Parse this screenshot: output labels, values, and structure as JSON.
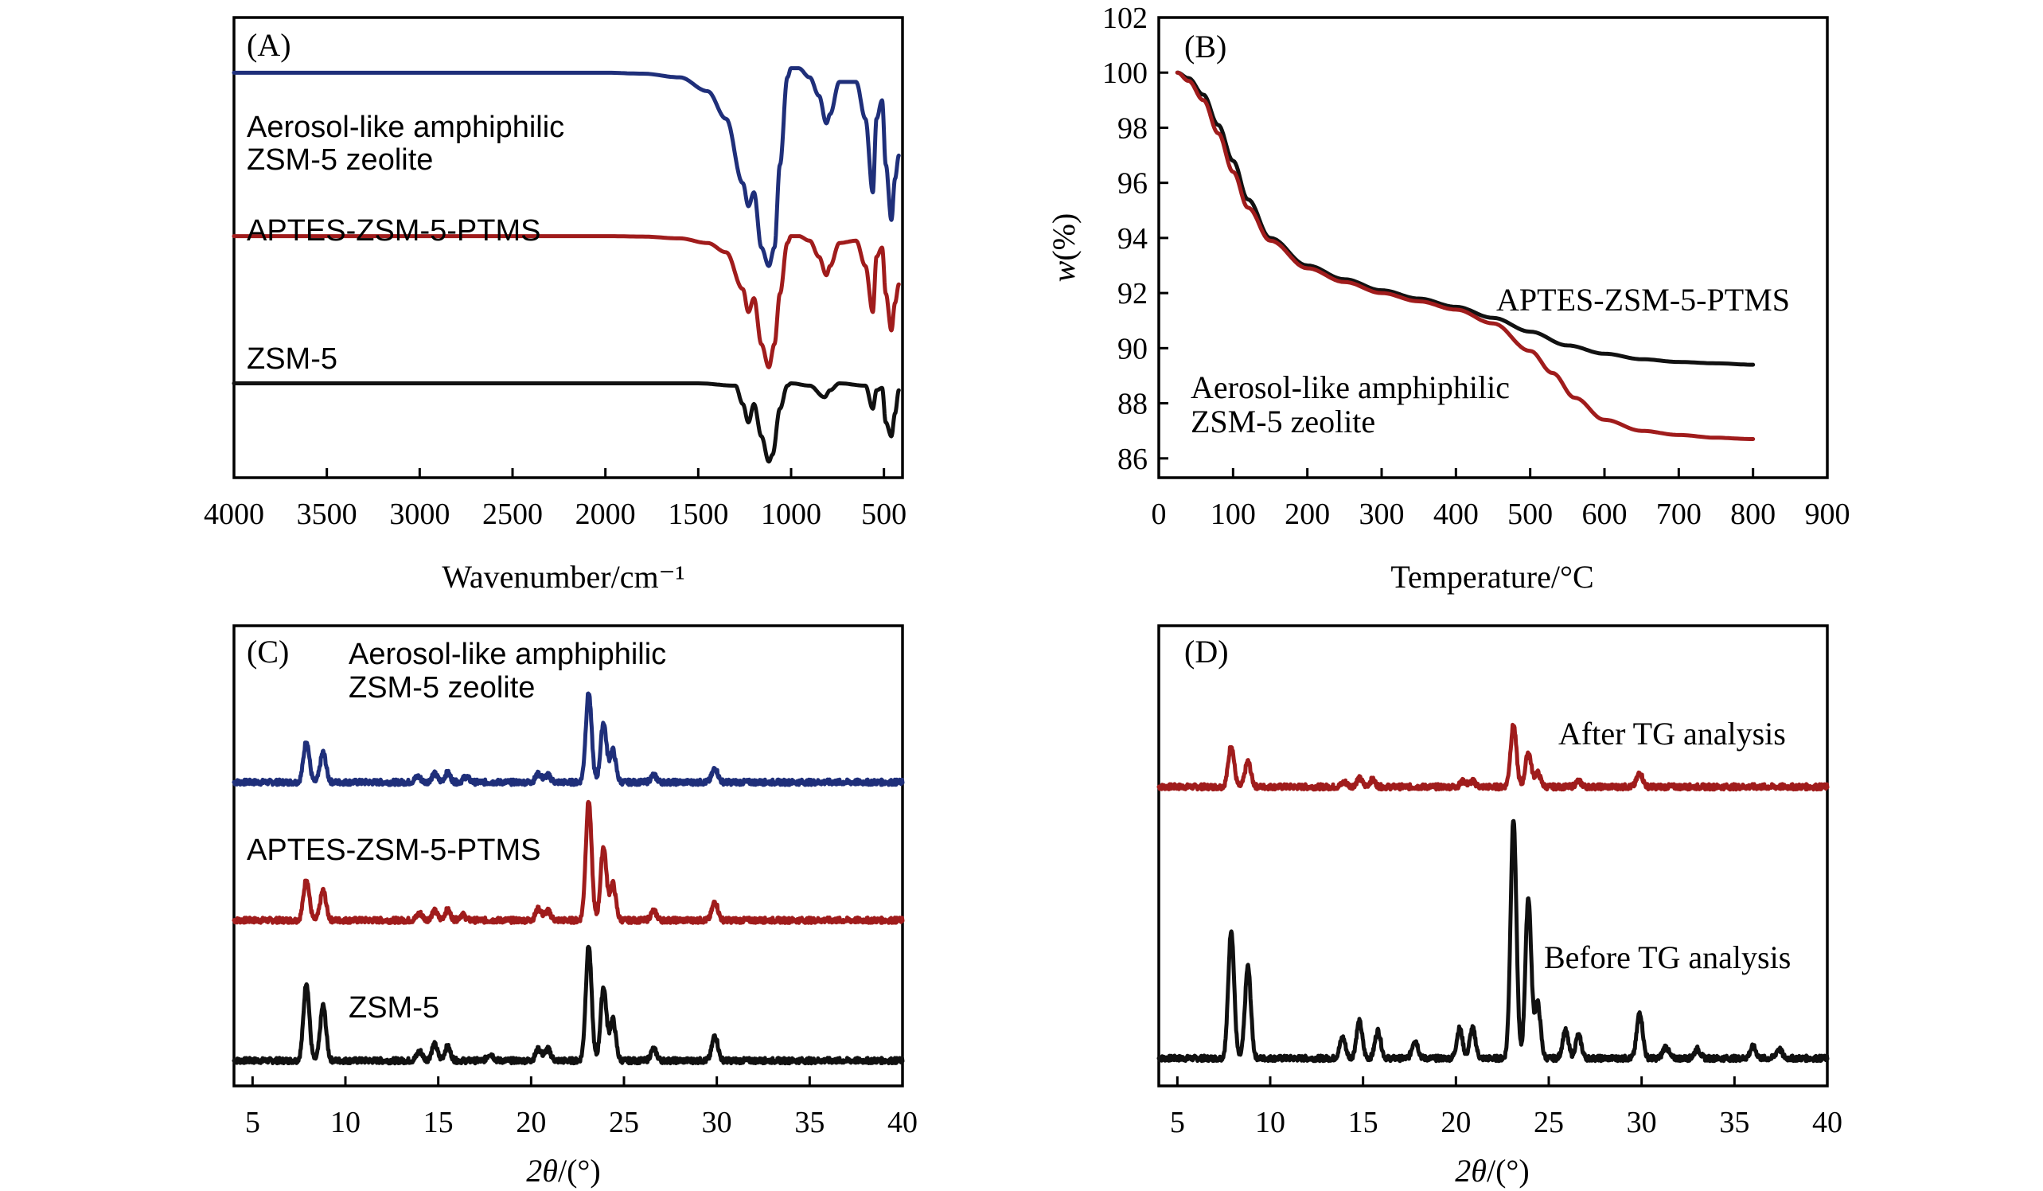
{
  "figure": {
    "colors": {
      "blue": "#1f2f7a",
      "red": "#a01c1c",
      "black": "#111111"
    }
  },
  "chart_data": [
    {
      "id": "A",
      "type": "line",
      "panel_label": "(A)",
      "title": "",
      "xlabel": "Wavenumber/cm⁻¹",
      "ylabel": "",
      "xlim": [
        4000,
        400
      ],
      "x_reversed": true,
      "xticks": [
        4000,
        3500,
        3000,
        2500,
        2000,
        1500,
        1000,
        500
      ],
      "xtick_labels": [
        "4000",
        "3500",
        "3000",
        "2500",
        "2000",
        "1500",
        "1000",
        "500"
      ],
      "y_units": "arbitrary (offset transmittance)",
      "ylim": [
        0,
        10
      ],
      "series": [
        {
          "name": "Aerosol-like amphiphilic ZSM-5 zeolite",
          "label_lines": [
            "Aerosol-like amphiphilic",
            "ZSM-5 zeolite"
          ],
          "color": "#1f2f7a",
          "x": [
            4000,
            3000,
            2000,
            1800,
            1600,
            1450,
            1350,
            1260,
            1230,
            1200,
            1160,
            1120,
            1090,
            1060,
            1020,
            1000,
            960,
            900,
            850,
            810,
            790,
            740,
            650,
            600,
            560,
            540,
            510,
            490,
            460,
            440,
            420
          ],
          "y": [
            8.8,
            8.8,
            8.8,
            8.78,
            8.7,
            8.4,
            7.8,
            6.4,
            5.9,
            6.2,
            5.0,
            4.6,
            5.0,
            6.8,
            8.7,
            8.9,
            8.9,
            8.7,
            8.3,
            7.7,
            7.9,
            8.6,
            8.6,
            7.8,
            6.2,
            7.8,
            8.2,
            6.8,
            5.6,
            6.5,
            7.0
          ]
        },
        {
          "name": "APTES-ZSM-5-PTMS",
          "label_lines": [
            "APTES-ZSM-5-PTMS"
          ],
          "color": "#a01c1c",
          "x": [
            4000,
            3000,
            2000,
            1800,
            1600,
            1450,
            1350,
            1260,
            1230,
            1200,
            1160,
            1120,
            1090,
            1060,
            1020,
            1000,
            960,
            900,
            850,
            810,
            790,
            740,
            650,
            600,
            560,
            540,
            510,
            490,
            460,
            440,
            420
          ],
          "y": [
            5.25,
            5.25,
            5.25,
            5.24,
            5.2,
            5.1,
            4.9,
            4.1,
            3.6,
            3.9,
            2.9,
            2.4,
            2.9,
            4.0,
            5.1,
            5.25,
            5.25,
            5.15,
            4.8,
            4.4,
            4.6,
            5.1,
            5.15,
            4.6,
            3.6,
            4.8,
            5.0,
            4.0,
            3.2,
            3.8,
            4.2
          ]
        },
        {
          "name": "ZSM-5",
          "label_lines": [
            "ZSM-5"
          ],
          "color": "#111111",
          "x": [
            4000,
            3000,
            2000,
            1500,
            1300,
            1260,
            1230,
            1200,
            1160,
            1120,
            1100,
            1060,
            1020,
            1000,
            900,
            820,
            790,
            740,
            600,
            560,
            540,
            510,
            490,
            460,
            440,
            420
          ],
          "y": [
            2.05,
            2.05,
            2.05,
            2.05,
            2.0,
            1.6,
            1.2,
            1.6,
            0.9,
            0.35,
            0.5,
            1.5,
            2.0,
            2.05,
            2.0,
            1.75,
            1.9,
            2.05,
            2.0,
            1.5,
            1.9,
            1.95,
            1.2,
            0.9,
            1.4,
            1.9
          ]
        }
      ]
    },
    {
      "id": "B",
      "type": "line",
      "panel_label": "(B)",
      "title": "",
      "xlabel": "Temperature/°C",
      "ylabel_italic": "w",
      "ylabel_rest": "(%)",
      "xlim": [
        0,
        900
      ],
      "ylim": [
        85.3,
        102
      ],
      "xticks": [
        0,
        100,
        200,
        300,
        400,
        500,
        600,
        700,
        800,
        900
      ],
      "xtick_labels": [
        "0",
        "100",
        "200",
        "300",
        "400",
        "500",
        "600",
        "700",
        "800",
        "900"
      ],
      "yticks": [
        86,
        88,
        90,
        92,
        94,
        96,
        98,
        100,
        102
      ],
      "ytick_labels": [
        "86",
        "88",
        "90",
        "92",
        "94",
        "96",
        "98",
        "100",
        "102"
      ],
      "series": [
        {
          "name": "APTES-ZSM-5-PTMS",
          "label_lines": [
            "APTES-ZSM-5-PTMS"
          ],
          "color": "#111111",
          "x": [
            25,
            40,
            60,
            80,
            100,
            120,
            150,
            200,
            250,
            300,
            350,
            400,
            450,
            500,
            550,
            600,
            650,
            700,
            750,
            800
          ],
          "y": [
            100,
            99.8,
            99.2,
            98.1,
            96.8,
            95.4,
            94.0,
            93.0,
            92.5,
            92.1,
            91.8,
            91.5,
            91.1,
            90.6,
            90.1,
            89.8,
            89.6,
            89.5,
            89.45,
            89.4
          ]
        },
        {
          "name": "Aerosol-like amphiphilic ZSM-5 zeolite",
          "label_lines": [
            "Aerosol-like amphiphilic",
            "ZSM-5 zeolite"
          ],
          "color": "#a01c1c",
          "x": [
            25,
            40,
            60,
            80,
            100,
            120,
            150,
            200,
            250,
            300,
            350,
            400,
            450,
            500,
            530,
            560,
            600,
            650,
            700,
            750,
            800
          ],
          "y": [
            100,
            99.7,
            99.0,
            97.8,
            96.4,
            95.1,
            93.9,
            92.9,
            92.4,
            92.0,
            91.7,
            91.4,
            90.9,
            89.9,
            89.1,
            88.2,
            87.4,
            87.0,
            86.85,
            86.75,
            86.7
          ]
        }
      ]
    },
    {
      "id": "C",
      "type": "line",
      "panel_label": "(C)",
      "title": "",
      "xlabel_italic": "2θ",
      "xlabel_rest": "/(°)",
      "xlim": [
        4,
        40
      ],
      "ylim": [
        0,
        10
      ],
      "xticks": [
        5,
        10,
        15,
        20,
        25,
        30,
        35,
        40
      ],
      "xtick_labels": [
        "5",
        "10",
        "15",
        "20",
        "25",
        "30",
        "35",
        "40"
      ],
      "series": [
        {
          "name": "Aerosol-like amphiphilic ZSM-5 zeolite",
          "label_lines": [
            "Aerosol-like amphiphilic",
            "ZSM-5 zeolite"
          ],
          "color": "#1f2f7a",
          "baseline": 6.6,
          "peaks": [
            [
              7.9,
              0.9
            ],
            [
              8.8,
              0.65
            ],
            [
              13.9,
              0.12
            ],
            [
              14.8,
              0.18
            ],
            [
              15.5,
              0.2
            ],
            [
              16.5,
              0.12
            ],
            [
              20.4,
              0.18
            ],
            [
              20.9,
              0.15
            ],
            [
              23.1,
              1.95
            ],
            [
              23.9,
              1.3
            ],
            [
              24.4,
              0.7
            ],
            [
              26.6,
              0.15
            ],
            [
              29.9,
              0.3
            ],
            [
              45,
              0
            ]
          ]
        },
        {
          "name": "APTES-ZSM-5-PTMS",
          "label_lines": [
            "APTES-ZSM-5-PTMS"
          ],
          "color": "#a01c1c",
          "baseline": 3.6,
          "peaks": [
            [
              7.9,
              0.9
            ],
            [
              8.8,
              0.65
            ],
            [
              14.0,
              0.15
            ],
            [
              14.8,
              0.2
            ],
            [
              15.5,
              0.22
            ],
            [
              16.3,
              0.12
            ],
            [
              20.4,
              0.25
            ],
            [
              20.9,
              0.2
            ],
            [
              23.1,
              2.6
            ],
            [
              23.9,
              1.6
            ],
            [
              24.4,
              0.8
            ],
            [
              26.6,
              0.2
            ],
            [
              29.9,
              0.4
            ],
            [
              45,
              0
            ]
          ]
        },
        {
          "name": "ZSM-5",
          "label_lines": [
            "ZSM-5"
          ],
          "color": "#111111",
          "baseline": 0.55,
          "peaks": [
            [
              7.9,
              1.7
            ],
            [
              8.8,
              1.2
            ],
            [
              14.0,
              0.2
            ],
            [
              14.8,
              0.35
            ],
            [
              15.5,
              0.3
            ],
            [
              17.8,
              0.15
            ],
            [
              20.4,
              0.25
            ],
            [
              20.9,
              0.25
            ],
            [
              23.1,
              2.5
            ],
            [
              23.9,
              1.6
            ],
            [
              24.4,
              0.9
            ],
            [
              26.6,
              0.25
            ],
            [
              29.9,
              0.55
            ],
            [
              45,
              0
            ]
          ]
        }
      ]
    },
    {
      "id": "D",
      "type": "line",
      "panel_label": "(D)",
      "title": "",
      "xlabel_italic": "2θ",
      "xlabel_rest": "/(°)",
      "xlim": [
        4,
        40
      ],
      "ylim": [
        0,
        10
      ],
      "xticks": [
        5,
        10,
        15,
        20,
        25,
        30,
        35,
        40
      ],
      "xtick_labels": [
        "5",
        "10",
        "15",
        "20",
        "25",
        "30",
        "35",
        "40"
      ],
      "series": [
        {
          "name": "After TG analysis",
          "label_lines": [
            "After TG analysis"
          ],
          "color": "#a01c1c",
          "baseline": 6.5,
          "peaks": [
            [
              7.9,
              0.9
            ],
            [
              8.8,
              0.55
            ],
            [
              14.0,
              0.1
            ],
            [
              14.8,
              0.18
            ],
            [
              15.5,
              0.15
            ],
            [
              20.4,
              0.12
            ],
            [
              20.9,
              0.12
            ],
            [
              23.1,
              1.35
            ],
            [
              23.9,
              0.75
            ],
            [
              24.4,
              0.3
            ],
            [
              26.6,
              0.12
            ],
            [
              29.9,
              0.3
            ],
            [
              45,
              0
            ]
          ]
        },
        {
          "name": "Before TG analysis",
          "label_lines": [
            "Before TG analysis"
          ],
          "color": "#111111",
          "baseline": 0.6,
          "peaks": [
            [
              7.9,
              2.8
            ],
            [
              8.8,
              2.0
            ],
            [
              13.9,
              0.45
            ],
            [
              14.8,
              0.8
            ],
            [
              15.8,
              0.6
            ],
            [
              17.8,
              0.4
            ],
            [
              20.2,
              0.65
            ],
            [
              20.9,
              0.65
            ],
            [
              23.1,
              5.2
            ],
            [
              23.9,
              3.5
            ],
            [
              24.4,
              1.2
            ],
            [
              25.9,
              0.6
            ],
            [
              26.6,
              0.5
            ],
            [
              29.9,
              1.0
            ],
            [
              31.3,
              0.25
            ],
            [
              33.0,
              0.2
            ],
            [
              36.0,
              0.25
            ],
            [
              37.4,
              0.2
            ],
            [
              45,
              0
            ]
          ]
        }
      ]
    }
  ]
}
